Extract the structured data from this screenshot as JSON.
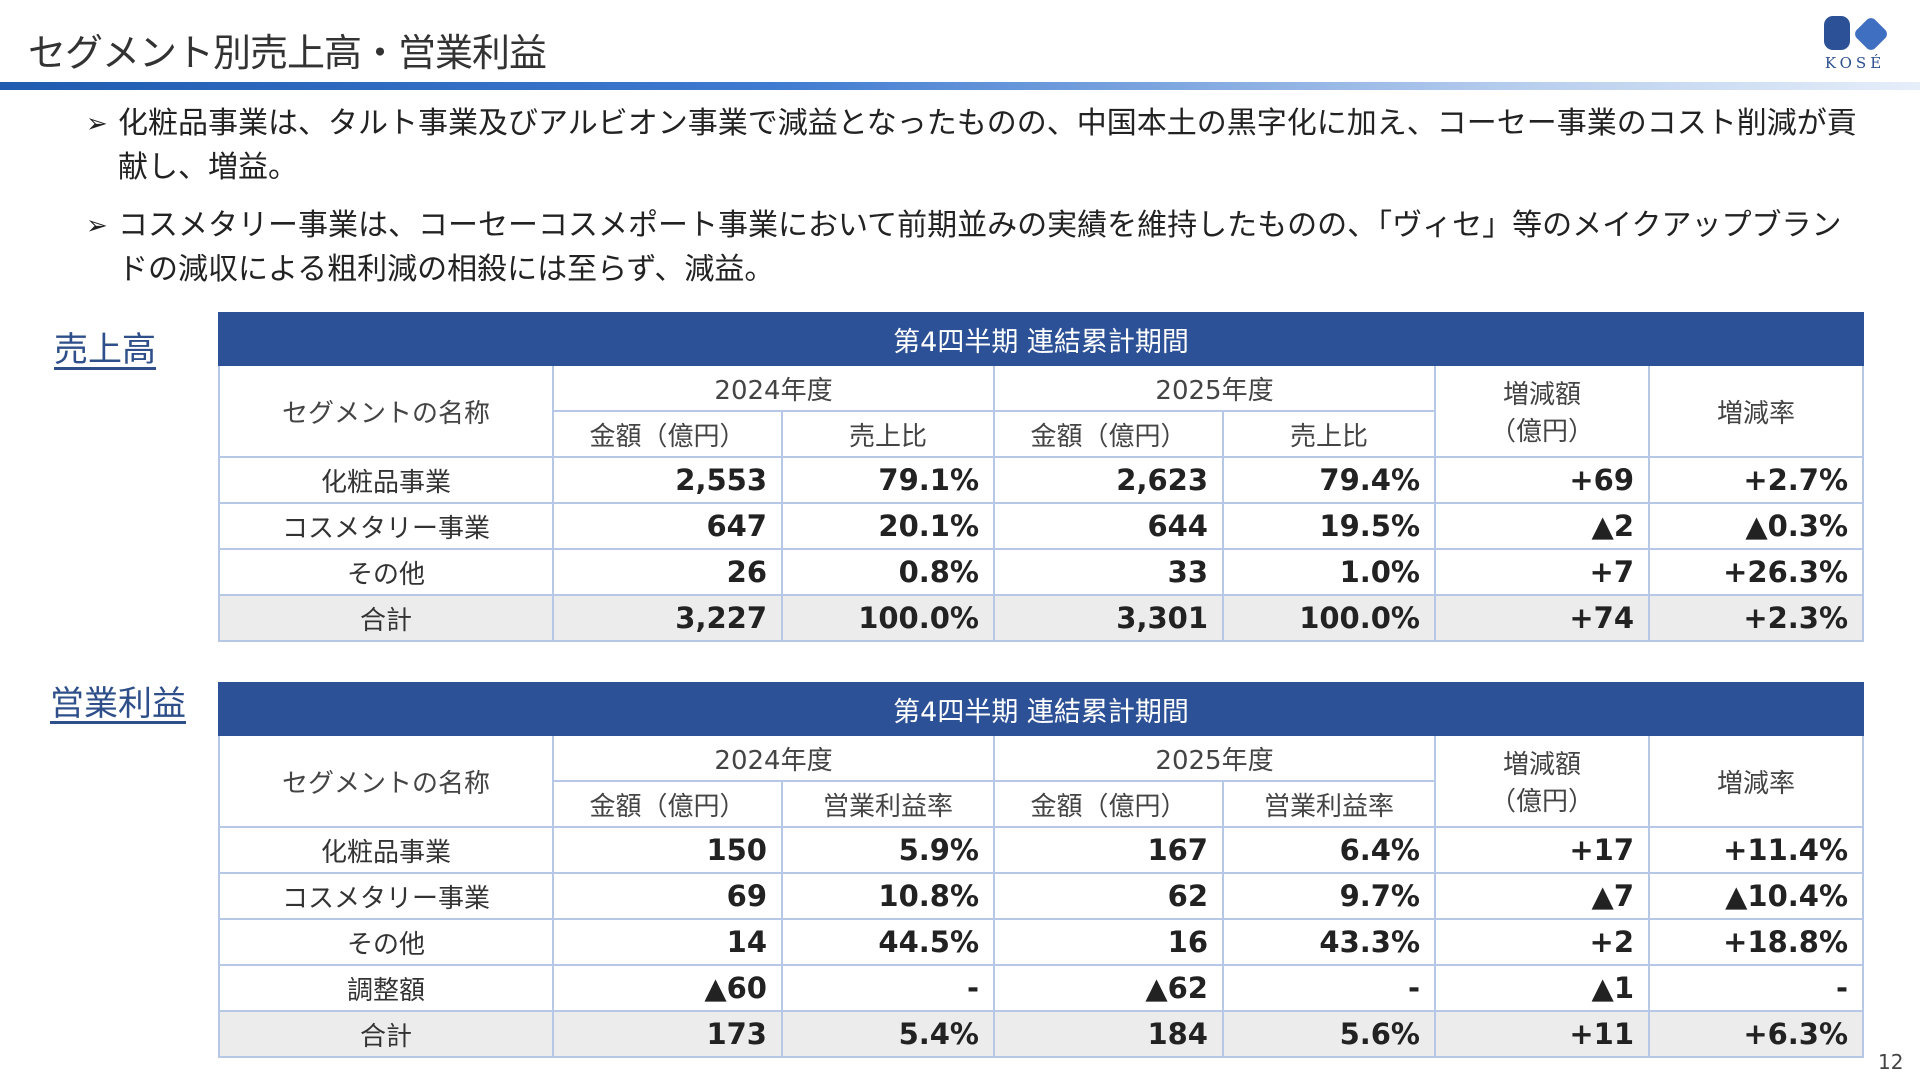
{
  "header": {
    "title": "セグメント別売上高・営業利益",
    "logo_text": "KOSÉ",
    "accent_color": "#2d5196"
  },
  "bullets": [
    "化粧品事業は、タルト事業及びアルビオン事業で減益となったものの、中国本土の黒字化に加え、コーセー事業のコスト削減が貢献し、増益。",
    "コスメタリー事業は、コーセーコスメポート事業において前期並みの実績を維持したものの、「ヴィセ」等のメイクアップブランドの減収による粗利減の相殺には至らず、減益。"
  ],
  "sales": {
    "label": "売上高",
    "banner": "第4四半期 連結累計期間",
    "col_segment": "セグメントの名称",
    "year1": "2024年度",
    "year2": "2025年度",
    "col_amount": "金額（億円）",
    "col_ratio": "売上比",
    "col_change": [
      "増減額",
      "（億円）"
    ],
    "col_rate": "増減率",
    "rows": [
      {
        "name": "化粧品事業",
        "a1": "2,553",
        "r1": "79.1%",
        "a2": "2,623",
        "r2": "79.4%",
        "chg": "+69",
        "rate": "+2.7%"
      },
      {
        "name": "コスメタリー事業",
        "a1": "647",
        "r1": "20.1%",
        "a2": "644",
        "r2": "19.5%",
        "chg": "▲2",
        "rate": "▲0.3%"
      },
      {
        "name": "その他",
        "a1": "26",
        "r1": "0.8%",
        "a2": "33",
        "r2": "1.0%",
        "chg": "+7",
        "rate": "+26.3%"
      },
      {
        "name": "合計",
        "a1": "3,227",
        "r1": "100.0%",
        "a2": "3,301",
        "r2": "100.0%",
        "chg": "+74",
        "rate": "+2.3%"
      }
    ]
  },
  "profit": {
    "label": "営業利益",
    "banner": "第4四半期 連結累計期間",
    "col_segment": "セグメントの名称",
    "year1": "2024年度",
    "year2": "2025年度",
    "col_amount": "金額（億円）",
    "col_ratio": "営業利益率",
    "col_change": [
      "増減額",
      "（億円）"
    ],
    "col_rate": "増減率",
    "rows": [
      {
        "name": "化粧品事業",
        "a1": "150",
        "r1": "5.9%",
        "a2": "167",
        "r2": "6.4%",
        "chg": "+17",
        "rate": "+11.4%"
      },
      {
        "name": "コスメタリー事業",
        "a1": "69",
        "r1": "10.8%",
        "a2": "62",
        "r2": "9.7%",
        "chg": "▲7",
        "rate": "▲10.4%"
      },
      {
        "name": "その他",
        "a1": "14",
        "r1": "44.5%",
        "a2": "16",
        "r2": "43.3%",
        "chg": "+2",
        "rate": "+18.8%"
      },
      {
        "name": "調整額",
        "a1": "▲60",
        "r1": "-",
        "a2": "▲62",
        "r2": "-",
        "chg": "▲1",
        "rate": "-"
      },
      {
        "name": "合計",
        "a1": "173",
        "r1": "5.4%",
        "a2": "184",
        "r2": "5.6%",
        "chg": "+11",
        "rate": "+6.3%"
      }
    ]
  },
  "page_number": "12"
}
